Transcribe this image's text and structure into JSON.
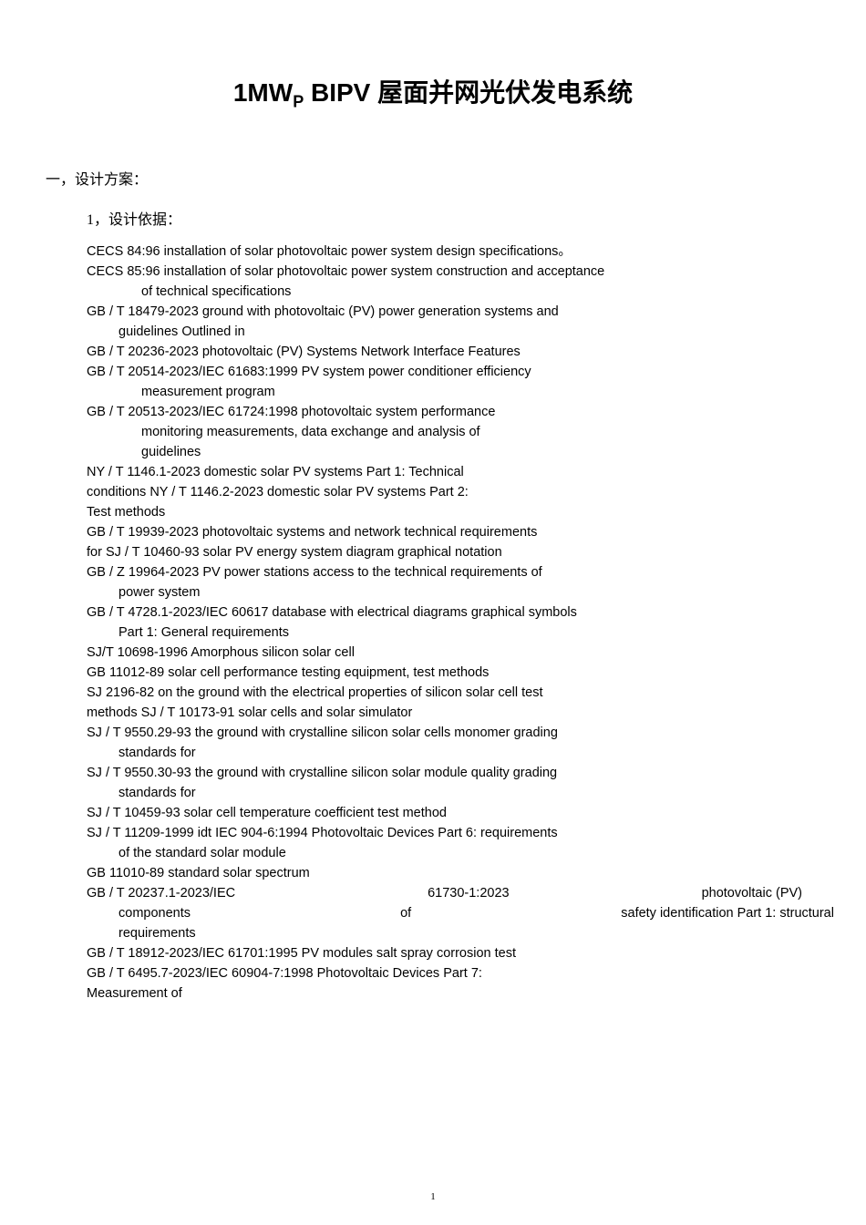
{
  "title": {
    "prefix": "1MW",
    "subscript": "P",
    "rest": "   BIPV 屋面并网光伏发电系统",
    "fontsize": 28,
    "fontweight": "bold"
  },
  "section1": {
    "heading": "一，设计方案：",
    "fontsize": 16
  },
  "subsection1": {
    "heading": "1，设计依据：",
    "fontsize": 16
  },
  "specs": [
    {
      "text": "CECS 84:96 installation of solar photovoltaic power system design specifications。"
    },
    {
      "text": "CECS 85:96 installation of solar photovoltaic power system construction and acceptance"
    },
    {
      "text": "of technical specifications",
      "indent": "spec-continuation"
    },
    {
      "text": "GB / T 18479-2023 ground with photovoltaic (PV) power generation systems and"
    },
    {
      "text": "guidelines Outlined in",
      "indent": "spec-continuation-2"
    },
    {
      "text": "GB / T 20236-2023 photovoltaic (PV) Systems Network Interface Features"
    },
    {
      "text": "GB / T 20514-2023/IEC 61683:1999 PV system power conditioner efficiency"
    },
    {
      "text": "measurement program",
      "indent": "spec-continuation"
    },
    {
      "text": "GB / T 20513-2023/IEC 61724:1998 photovoltaic system performance"
    },
    {
      "text": "monitoring measurements, data exchange and analysis of",
      "indent": "spec-continuation"
    },
    {
      "text": "guidelines",
      "indent": "spec-continuation"
    },
    {
      "text": "NY / T 1146.1-2023 domestic solar PV systems Part 1: Technical"
    },
    {
      "text": "conditions NY / T 1146.2-2023 domestic solar PV systems Part 2:"
    },
    {
      "text": "Test methods"
    },
    {
      "text": "GB / T 19939-2023 photovoltaic systems and network technical requirements"
    },
    {
      "text": "for SJ / T 10460-93 solar PV energy system diagram graphical notation"
    },
    {
      "text": "GB / Z 19964-2023 PV power stations access to the technical requirements of"
    },
    {
      "text": "power system",
      "indent": "spec-continuation-2"
    },
    {
      "text": "GB / T 4728.1-2023/IEC 60617 database with electrical diagrams graphical symbols"
    },
    {
      "text": "Part 1: General requirements",
      "indent": "spec-continuation-2"
    },
    {
      "text": "SJ/T 10698-1996 Amorphous silicon solar cell"
    },
    {
      "text": "GB 11012-89 solar cell performance testing equipment, test methods"
    },
    {
      "text": "SJ 2196-82 on the ground with the electrical properties of silicon solar cell test"
    },
    {
      "text": "methods SJ / T 10173-91 solar cells and solar simulator"
    },
    {
      "text": "SJ / T 9550.29-93 the ground with crystalline silicon solar cells monomer grading"
    },
    {
      "text": "standards for",
      "indent": "spec-continuation-2"
    },
    {
      "text": "SJ / T 9550.30-93 the ground with crystalline silicon solar module quality grading"
    },
    {
      "text": "standards for",
      "indent": "spec-continuation-2"
    },
    {
      "text": "SJ / T 10459-93 solar cell temperature coefficient test method"
    },
    {
      "text": "SJ / T 11209-1999 idt IEC 904-6:1994 Photovoltaic Devices Part 6: requirements"
    },
    {
      "text": "of the standard solar module",
      "indent": "spec-continuation-2"
    },
    {
      "text": "GB 11010-89 standard solar spectrum"
    }
  ],
  "threeColRow1": {
    "col1": "GB  /  T  20237.1-2023/IEC",
    "col2": "61730-1:2023",
    "col3": "photovoltaic  (PV)"
  },
  "threeColRow2": {
    "col1": "components",
    "col2": "of",
    "col3": "safety identification Part 1: structural"
  },
  "specsAfter": [
    {
      "text": "requirements",
      "indent": "spec-continuation-2"
    },
    {
      "text": "GB / T 18912-2023/IEC 61701:1995 PV modules salt spray corrosion test"
    },
    {
      "text": "GB / T 6495.7-2023/IEC 60904-7:1998 Photovoltaic Devices Part 7:"
    },
    {
      "text": "Measurement of"
    }
  ],
  "pageNumber": "1",
  "colors": {
    "background": "#ffffff",
    "text": "#000000"
  },
  "typography": {
    "title_fontsize": 28,
    "body_fontsize": 14.5,
    "heading_fontsize": 16,
    "page_number_fontsize": 11,
    "line_height": 1.45
  }
}
